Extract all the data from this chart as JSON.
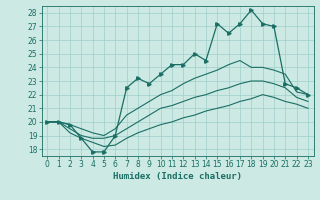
{
  "xlabel": "Humidex (Indice chaleur)",
  "xlim": [
    -0.5,
    23.5
  ],
  "ylim": [
    17.5,
    28.5
  ],
  "xticks": [
    0,
    1,
    2,
    3,
    4,
    5,
    6,
    7,
    8,
    9,
    10,
    11,
    12,
    13,
    14,
    15,
    16,
    17,
    18,
    19,
    20,
    21,
    22,
    23
  ],
  "yticks": [
    18,
    19,
    20,
    21,
    22,
    23,
    24,
    25,
    26,
    27,
    28
  ],
  "bg_color": "#cce9e3",
  "line_color": "#1a6e64",
  "grid_color": "#9ecfca",
  "main_y": [
    20.0,
    20.0,
    19.8,
    18.8,
    17.8,
    17.8,
    19.0,
    22.5,
    23.2,
    22.8,
    23.5,
    24.2,
    24.2,
    25.0,
    24.5,
    27.2,
    26.5,
    27.2,
    28.2,
    27.2,
    27.0,
    22.8,
    22.5,
    22.0
  ],
  "upper_y": [
    20.0,
    20.0,
    19.8,
    19.5,
    19.2,
    19.0,
    19.5,
    20.5,
    21.0,
    21.5,
    22.0,
    22.3,
    22.8,
    23.2,
    23.5,
    23.8,
    24.2,
    24.5,
    24.0,
    24.0,
    23.8,
    23.5,
    22.2,
    22.0
  ],
  "mid_y": [
    20.0,
    20.0,
    19.5,
    19.0,
    18.8,
    18.8,
    19.0,
    19.5,
    20.0,
    20.5,
    21.0,
    21.2,
    21.5,
    21.8,
    22.0,
    22.3,
    22.5,
    22.8,
    23.0,
    23.0,
    22.8,
    22.5,
    21.8,
    21.5
  ],
  "lower_y": [
    20.0,
    20.0,
    19.2,
    18.8,
    18.5,
    18.2,
    18.3,
    18.8,
    19.2,
    19.5,
    19.8,
    20.0,
    20.3,
    20.5,
    20.8,
    21.0,
    21.2,
    21.5,
    21.7,
    22.0,
    21.8,
    21.5,
    21.3,
    21.0
  ]
}
